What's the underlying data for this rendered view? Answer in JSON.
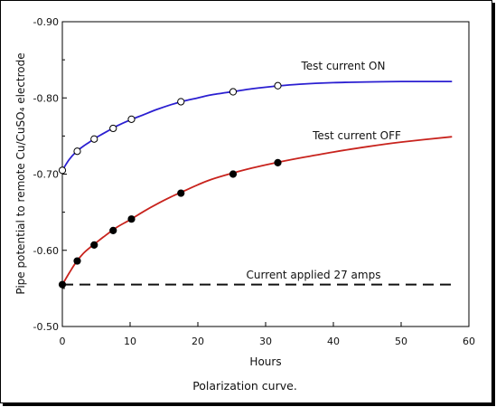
{
  "chart_data": {
    "type": "line",
    "title": "",
    "caption": "Polarization curve.",
    "xlabel": "Hours",
    "ylabel": "Pipe potential to remote Cu/CuSO₄ electrode",
    "xlim": [
      0,
      60
    ],
    "ylim": [
      -0.5,
      -0.9
    ],
    "x_ticks": [
      "0",
      "10",
      "20",
      "30",
      "40",
      "50",
      "60"
    ],
    "x_tick_values": [
      0,
      10,
      20,
      30,
      40,
      50,
      60
    ],
    "y_ticks": [
      "-0.90",
      "-0.80",
      "-0.70",
      "-0.60",
      "-0.50"
    ],
    "y_tick_values": [
      -0.9,
      -0.8,
      -0.7,
      -0.6,
      -0.5
    ],
    "grid": false,
    "series": [
      {
        "name": "Test current ON",
        "color": "#2b1fd1",
        "marker": "open-circle",
        "x": [
          0,
          2.2,
          4.7,
          7.5,
          10.2,
          17.5,
          25.2,
          31.8
        ],
        "y": [
          -0.705,
          -0.73,
          -0.746,
          -0.76,
          -0.772,
          -0.795,
          -0.808,
          -0.816
        ],
        "curve_x": [
          0,
          1,
          2,
          3,
          4,
          5,
          6,
          7,
          8,
          10,
          12,
          14,
          16,
          18,
          20,
          22,
          25,
          28,
          31,
          35,
          40,
          45,
          50,
          57.5
        ],
        "curve_y": [
          -0.705,
          -0.719,
          -0.729,
          -0.736,
          -0.742,
          -0.748,
          -0.753,
          -0.758,
          -0.763,
          -0.771,
          -0.778,
          -0.785,
          -0.791,
          -0.796,
          -0.8,
          -0.804,
          -0.808,
          -0.812,
          -0.815,
          -0.818,
          -0.82,
          -0.821,
          -0.8215,
          -0.8215
        ]
      },
      {
        "name": "Test current OFF",
        "color": "#c8231d",
        "marker": "filled-circle",
        "x": [
          0,
          2.2,
          4.7,
          7.5,
          10.2,
          17.5,
          25.2,
          31.8
        ],
        "y": [
          -0.555,
          -0.586,
          -0.607,
          -0.626,
          -0.641,
          -0.675,
          -0.7,
          -0.715
        ],
        "curve_x": [
          0,
          1,
          2,
          3,
          4,
          5,
          6,
          8,
          10,
          12,
          14,
          16,
          18,
          20,
          22,
          25,
          28,
          31,
          35,
          40,
          45,
          50,
          57.5
        ],
        "curve_y": [
          -0.555,
          -0.57,
          -0.584,
          -0.595,
          -0.603,
          -0.61,
          -0.617,
          -0.63,
          -0.64,
          -0.651,
          -0.661,
          -0.67,
          -0.678,
          -0.686,
          -0.693,
          -0.701,
          -0.708,
          -0.714,
          -0.721,
          -0.729,
          -0.736,
          -0.742,
          -0.749
        ]
      }
    ],
    "reference_line": {
      "label": "Current applied 27 amps",
      "y": -0.555,
      "x_start": 0,
      "x_end": 57.5,
      "style": "dashed",
      "color": "#111111"
    }
  }
}
